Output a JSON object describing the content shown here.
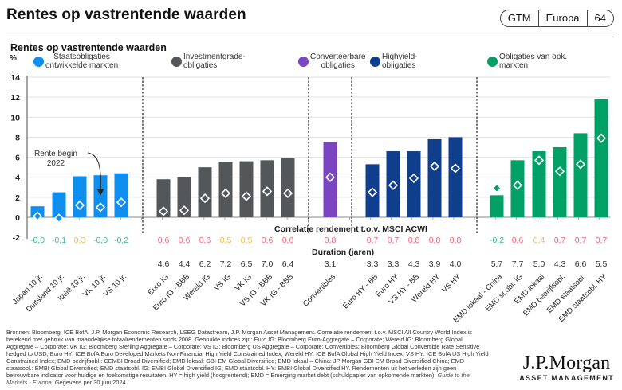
{
  "header": {
    "title": "Rentes op vastrentende waarden",
    "badge": [
      "GTM",
      "Europa",
      "64"
    ]
  },
  "chart_data": {
    "type": "bar",
    "title": "Rentes op vastrentende waarden",
    "ylabel": "%",
    "ylim": [
      -2,
      14
    ],
    "yticks": [
      -2,
      0,
      2,
      4,
      6,
      8,
      10,
      12,
      14
    ],
    "grid": true,
    "annotation": "Rente begin 2022",
    "correlation_label": "Correlatie rendement t.o.v. MSCI ACWI",
    "duration_label": "Duration (jaren)",
    "groups": [
      {
        "name": "Staatsobligaties ontwikkelde markten",
        "color": "#0e8ff0",
        "categories": [
          "Japan 10 jr.",
          "Duitsland 10 jr.",
          "Italië 10 jr.",
          "VK 10 jr.",
          "VS 10 jr."
        ],
        "values": [
          1.1,
          2.5,
          4.1,
          4.2,
          4.4
        ],
        "rate_begin_2022": [
          0.1,
          -0.1,
          1.2,
          1.0,
          1.5
        ],
        "correlation": [
          "-0,0",
          "-0,1",
          "0,3",
          "-0,0",
          "-0,2"
        ],
        "duration": [
          "",
          "",
          "",
          "",
          ""
        ]
      },
      {
        "name": "Investmentgrade-obligaties",
        "color": "#54575a",
        "categories": [
          "Euro IG",
          "Euro IG - BBB",
          "Wereld IG",
          "VS IG",
          "VK IG",
          "VS IG - BBB",
          "VK IG - BBB"
        ],
        "values": [
          3.8,
          4.0,
          5.0,
          5.5,
          5.6,
          5.7,
          5.9
        ],
        "rate_begin_2022": [
          0.6,
          0.7,
          1.9,
          2.4,
          2.1,
          2.6,
          2.4
        ],
        "correlation": [
          "0,6",
          "0,6",
          "0,6",
          "0,5",
          "0,5",
          "0,6",
          "0,6"
        ],
        "duration": [
          "4,6",
          "4,4",
          "6,2",
          "7,2",
          "6,5",
          "7,0",
          "6,4"
        ]
      },
      {
        "name": "Converteerbare obligaties",
        "color": "#7b44c0",
        "categories": [
          "Convertibles"
        ],
        "values": [
          7.5
        ],
        "rate_begin_2022": [
          4.0
        ],
        "correlation": [
          "0,8"
        ],
        "duration": [
          "3,1"
        ]
      },
      {
        "name": "Highyield-obligaties",
        "color": "#0f3f8c",
        "categories": [
          "Euro HY - BB",
          "Euro HY",
          "VS HY - BB",
          "Wereld HY",
          "VS HY"
        ],
        "values": [
          5.3,
          6.6,
          6.6,
          7.8,
          8.0
        ],
        "rate_begin_2022": [
          2.5,
          3.2,
          3.9,
          5.1,
          4.9
        ],
        "correlation": [
          "0,7",
          "0,7",
          "0,8",
          "0,8",
          "0,8"
        ],
        "duration": [
          "3,3",
          "3,3",
          "4,3",
          "3,9",
          "4,0"
        ]
      },
      {
        "name": "Obligaties van opk. markten",
        "color": "#00a066",
        "categories": [
          "EMD lokaal - China",
          "EMD st.obl. IG",
          "EMD lokaal",
          "EMD bedrijfsobl.",
          "EMD staatsobl.",
          "EMD staatsobl. HY"
        ],
        "values": [
          2.2,
          5.7,
          6.6,
          7.0,
          8.4,
          11.8
        ],
        "rate_begin_2022": [
          2.9,
          3.2,
          5.7,
          4.6,
          5.3,
          7.9
        ],
        "rate_marker_filled": [
          true,
          false,
          false,
          false,
          false,
          false
        ],
        "correlation": [
          "-0,2",
          "0,6",
          "0,4",
          "0,7",
          "0,7",
          "0,7"
        ],
        "duration": [
          "5,7",
          "7,7",
          "5,0",
          "4,3",
          "6,6",
          "5,5"
        ]
      }
    ],
    "correlation_colors": {
      "low": "#3fb68b",
      "mid": "#f5b94a",
      "high": "#f2667a"
    }
  },
  "legend": [
    {
      "line1": "Staatsobligaties",
      "line2": "ontwikkelde markten"
    },
    {
      "line1": "Investmentgrade-",
      "line2": "obligaties"
    },
    {
      "line1": "Converteerbare",
      "line2": "obligaties"
    },
    {
      "line1": "Highyield-",
      "line2": "obligaties"
    },
    {
      "line1": "Obligaties van opk.",
      "line2": "markten"
    }
  ],
  "footer": {
    "source": "Bronnen: Bloomberg, ICE BofA, J.P. Morgan Economic Research, LSEG Datastream, J.P. Morgan Asset Management. Correlatie rendement t.o.v. MSCI All Country World Index is berekend met gebruik van maandelijkse totaalrendementen sinds 2008. Gebruikte indices zijn: Euro IG: Bloomberg Euro-Aggregate – Corporate; Wereld IG: Bloomberg Global Aggregate – Corporate; VK IG: Bloomberg Sterling Aggregate – Corporate; VS IG: Bloomberg US Aggregate – Corporate; Convertibles: Bloomberg Global Convertible Rate Sensitive hedged to USD; Euro HY: ICE BofA Euro Developed Markets Non-Financial High Yield Constrained Index; Wereld HY: ICE BofA Global High Yield Index; VS HY: ICE BofA US High Yield Constrained Index; EMD bedrijfsobl.: CEMBI Broad Diversified; EMD lokaal: GBI-EM Global Diversified; EMD lokaal – China: JP Morgan GBI-EM Broad Diversified China; EMD staatsobl.: EMBI Global Diversified; EMD staatsobl. IG: EMBI Global Diversified IG; EMD staatsobl. HY: EMBI Global Diversified HY. Rendementen uit het verleden zijn geen betrouwbare indicator voor huidige en toekomstige resultaten. HY = high yield (hoogrentend); EMD = Emerging market debt (schuldpapier van opkomende markten).",
    "guide": "Guide to the Markets - Europa.",
    "date": "Gegevens per 30 juni 2024.",
    "logo_main": "J.P.Morgan",
    "logo_sub": "ASSET MANAGEMENT"
  }
}
